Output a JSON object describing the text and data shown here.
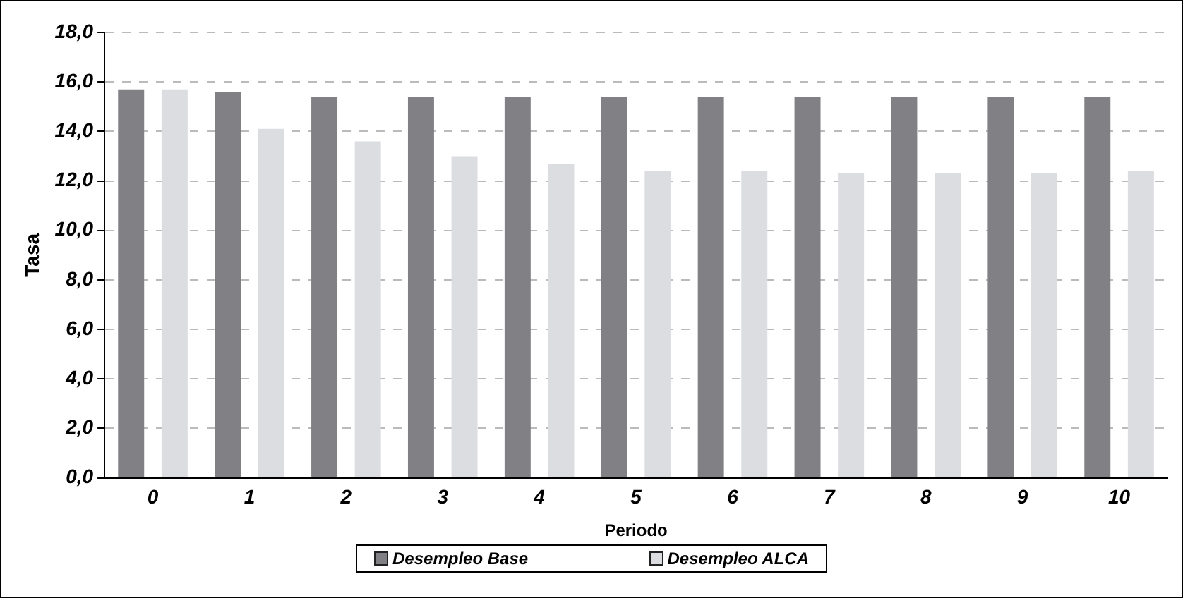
{
  "chart_data": {
    "type": "bar",
    "xlabel": "Periodo",
    "ylabel": "Tasa",
    "categories": [
      "0",
      "1",
      "2",
      "3",
      "4",
      "5",
      "6",
      "7",
      "8",
      "9",
      "10"
    ],
    "series": [
      {
        "name": "Desempleo Base",
        "color": "#808085",
        "values": [
          15.7,
          15.6,
          15.4,
          15.4,
          15.4,
          15.4,
          15.4,
          15.4,
          15.4,
          15.4,
          15.4
        ]
      },
      {
        "name": "Desempleo ALCA",
        "color": "#dcdde0",
        "values": [
          15.7,
          14.1,
          13.6,
          13.0,
          12.7,
          12.4,
          12.4,
          12.3,
          12.3,
          12.3,
          12.4
        ]
      }
    ],
    "ylim": [
      0,
      18
    ],
    "yticks": [
      {
        "value": 0,
        "label": "0,0"
      },
      {
        "value": 2,
        "label": "2,0"
      },
      {
        "value": 4,
        "label": "4,0"
      },
      {
        "value": 6,
        "label": "6,0"
      },
      {
        "value": 8,
        "label": "8,0"
      },
      {
        "value": 10,
        "label": "10,0"
      },
      {
        "value": 12,
        "label": "12,0"
      },
      {
        "value": 14,
        "label": "14,0"
      },
      {
        "value": 16,
        "label": "16,0"
      },
      {
        "value": 18,
        "label": "18,0"
      }
    ],
    "grid": "y",
    "legend": "bottom"
  }
}
